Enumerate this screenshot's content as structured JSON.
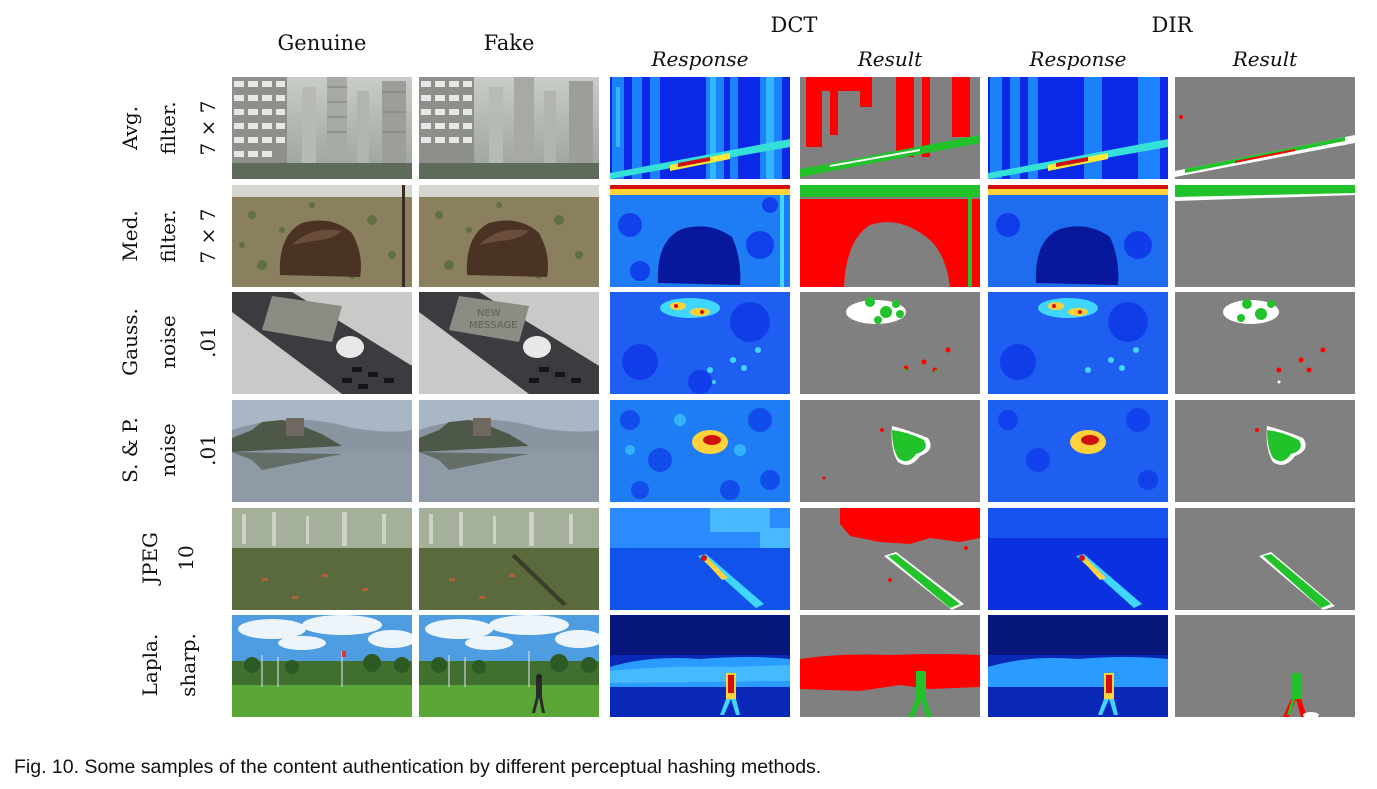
{
  "figure": {
    "columns": {
      "genuine": "Genuine",
      "fake": "Fake",
      "dct": "DCT",
      "dir": "DIR",
      "response": "Response",
      "result": "Result"
    },
    "rows": [
      {
        "id": "avg",
        "line1": "Avg.",
        "line2": "filter.",
        "line3": "7 × 7"
      },
      {
        "id": "med",
        "line1": "Med.",
        "line2": "filter.",
        "line3": "7 × 7"
      },
      {
        "id": "gauss",
        "line1": "Gauss.",
        "line2": "noise",
        "line3": ".01"
      },
      {
        "id": "sp",
        "line1": "S. & P.",
        "line2": "noise",
        "line3": ".01"
      },
      {
        "id": "jpeg",
        "line1": "JPEG",
        "line2": "10",
        "line3": ""
      },
      {
        "id": "lapla",
        "line1": "Lapla.",
        "line2": "sharp.",
        "line3": ""
      }
    ],
    "colors": {
      "result_gray": "#808080",
      "result_red": "#ff0000",
      "result_green": "#22c22a",
      "response_blue": "#0a28e6",
      "response_red": "#d01010"
    }
  },
  "caption": "Fig. 10. Some samples of the content authentication by different perceptual hashing methods."
}
